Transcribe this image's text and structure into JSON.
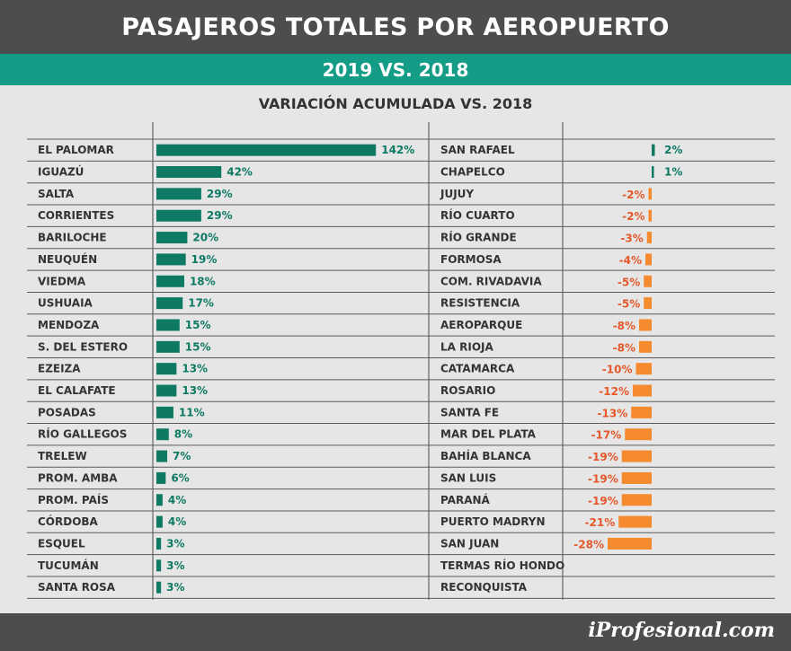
{
  "header": {
    "title": "PASAJEROS TOTALES POR AEROPUERTO"
  },
  "subheader": {
    "title": "2019 VS. 2018"
  },
  "footer": {
    "brand": "iProfesional.com"
  },
  "colors": {
    "positive": "#0e7a63",
    "negative": "#f58a2e",
    "header_bg": "#4d4d4d",
    "accent": "#149c86"
  },
  "chart_data": [
    {
      "type": "bar",
      "title": "VARIACIÓN ACUMULADA VS. 2018",
      "unit": "%",
      "categories": [
        "EL PALOMAR",
        "IGUAZÚ",
        "SALTA",
        "CORRIENTES",
        "BARILOCHE",
        "NEUQUÉN",
        "VIEDMA",
        "USHUAIA",
        "MENDOZA",
        "S. DEL ESTERO",
        "EZEIZA",
        "EL CALAFATE",
        "POSADAS",
        "RÍO GALLEGOS",
        "TRELEW",
        "PROM. AMBA",
        "PROM. PAÍS",
        "CÓRDOBA",
        "ESQUEL",
        "TUCUMÁN",
        "SANTA ROSA"
      ],
      "values": [
        142,
        42,
        29,
        29,
        20,
        19,
        18,
        17,
        15,
        15,
        13,
        13,
        11,
        8,
        7,
        6,
        4,
        4,
        3,
        3,
        3
      ],
      "labels": [
        "142%",
        "42%",
        "29%",
        "29%",
        "20%",
        "19%",
        "18%",
        "17%",
        "15%",
        "15%",
        "13%",
        "13%",
        "11%",
        "8%",
        "7%",
        "6%",
        "4%",
        "4%",
        "3%",
        "3%",
        "3%"
      ]
    },
    {
      "type": "bar",
      "unit": "%",
      "categories": [
        "SAN RAFAEL",
        "CHAPELCO",
        "JUJUY",
        "RÍO CUARTO",
        "RÍO GRANDE",
        "FORMOSA",
        "COM. RIVADAVIA",
        "RESISTENCIA",
        "AEROPARQUE",
        "LA RIOJA",
        "CATAMARCA",
        "ROSARIO",
        "SANTA FE",
        "MAR DEL PLATA",
        "BAHÍA BLANCA",
        "SAN LUIS",
        "PARANÁ",
        "PUERTO MADRYN",
        "SAN JUAN",
        "TERMAS RÍO HONDO",
        "RECONQUISTA"
      ],
      "values": [
        2,
        1,
        -2,
        -2,
        -3,
        -4,
        -5,
        -5,
        -8,
        -8,
        -10,
        -12,
        -13,
        -17,
        -19,
        -19,
        -19,
        -21,
        -28,
        null,
        null
      ],
      "labels": [
        "2%",
        "1%",
        "-2%",
        "-2%",
        "-3%",
        "-4%",
        "-5%",
        "-5%",
        "-8%",
        "-8%",
        "-10%",
        "-12%",
        "-13%",
        "-17%",
        "-19%",
        "-19%",
        "-19%",
        "-21%",
        "-28%",
        "",
        ""
      ]
    }
  ]
}
